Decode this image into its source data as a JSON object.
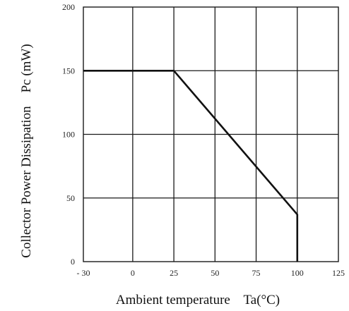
{
  "chart_data": {
    "type": "line",
    "xlabel": "Ambient temperature    Ta(°C)",
    "ylabel": "Collector Power Dissipation    Pc (mW)",
    "xlim": [
      -30,
      125
    ],
    "ylim": [
      0,
      200
    ],
    "x_ticks": [
      -30,
      0,
      25,
      50,
      75,
      100,
      125
    ],
    "x_tick_labels": [
      "- 30",
      "0",
      "25",
      "50",
      "75",
      "100",
      "125"
    ],
    "y_ticks": [
      0,
      50,
      100,
      150,
      200
    ],
    "y_tick_labels": [
      "0",
      "50",
      "100",
      "150",
      "200"
    ],
    "grid": true,
    "series": [
      {
        "x": [
          -30,
          25,
          100,
          100
        ],
        "y": [
          150,
          150,
          37,
          0
        ]
      }
    ],
    "colors": {
      "line": "#111111",
      "grid": "#1a1a1a"
    }
  }
}
